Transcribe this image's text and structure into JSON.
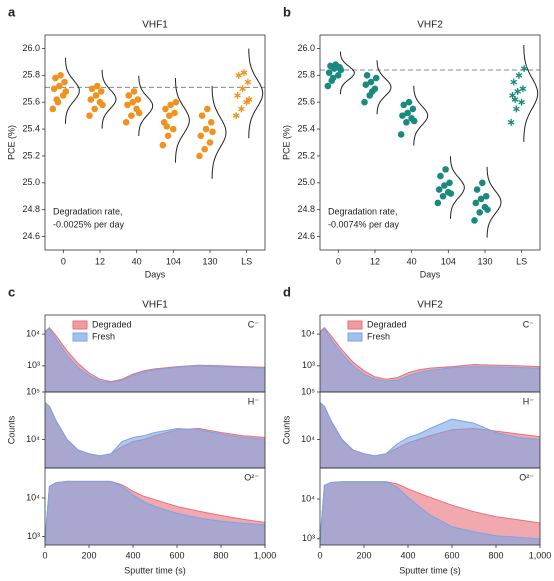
{
  "chart_data": [
    {
      "type": "strip",
      "panel": "a",
      "title": "VHF1",
      "ylabel": "PCE (%)",
      "xlabel": "Days",
      "categories": [
        "0",
        "12",
        "40",
        "104",
        "130",
        "LS"
      ],
      "points": [
        [
          25.55,
          25.6,
          25.65,
          25.7,
          25.72,
          25.75,
          25.78,
          25.8,
          25.68,
          25.62
        ],
        [
          25.5,
          25.55,
          25.6,
          25.62,
          25.65,
          25.68,
          25.7,
          25.72,
          25.58
        ],
        [
          25.45,
          25.5,
          25.55,
          25.58,
          25.6,
          25.62,
          25.65,
          25.68,
          25.52
        ],
        [
          25.28,
          25.35,
          25.4,
          25.45,
          25.5,
          25.52,
          25.55,
          25.58,
          25.6,
          25.42
        ],
        [
          25.2,
          25.25,
          25.3,
          25.35,
          25.4,
          25.45,
          25.5,
          25.55,
          25.38
        ],
        [
          25.5,
          25.55,
          25.6,
          25.65,
          25.7,
          25.75,
          25.8,
          25.82,
          25.62
        ]
      ],
      "markers": [
        "circle",
        "circle",
        "circle",
        "circle",
        "circle",
        "star"
      ],
      "color": "#f0921e",
      "reference": 25.71,
      "ylim": [
        24.5,
        26.1
      ],
      "yticks": [
        24.6,
        24.8,
        {
          "value": 25,
          "label": "25.0"
        },
        25.2,
        25.4,
        25.6,
        25.8,
        {
          "value": 26,
          "label": "26.0"
        }
      ],
      "annotation": [
        "Degradation rate,",
        "-0.0025% per day"
      ]
    },
    {
      "type": "strip",
      "panel": "b",
      "title": "VHF2",
      "ylabel": "PCE (%)",
      "xlabel": "Days",
      "categories": [
        "0",
        "12",
        "40",
        "104",
        "130",
        "LS"
      ],
      "points": [
        [
          25.72,
          25.78,
          25.8,
          25.82,
          25.85,
          25.86,
          25.87,
          25.88,
          25.84,
          25.76
        ],
        [
          25.6,
          25.65,
          25.7,
          25.73,
          25.75,
          25.78,
          25.8,
          25.68
        ],
        [
          25.36,
          25.45,
          25.48,
          25.5,
          25.52,
          25.55,
          25.58,
          25.6,
          25.46
        ],
        [
          24.85,
          24.9,
          24.93,
          24.95,
          24.98,
          25.0,
          25.05,
          25.1,
          24.92
        ],
        [
          24.72,
          24.78,
          24.82,
          24.85,
          24.88,
          24.9,
          24.95,
          25.0,
          24.8
        ],
        [
          25.45,
          25.55,
          25.6,
          25.65,
          25.68,
          25.7,
          25.75,
          25.8,
          25.85,
          25.62
        ]
      ],
      "markers": [
        "circle",
        "circle",
        "circle",
        "circle",
        "circle",
        "star"
      ],
      "color": "#1a8a7e",
      "reference": 25.84,
      "ylim": [
        24.5,
        26.1
      ],
      "yticks": [
        24.6,
        24.8,
        {
          "value": 25,
          "label": "25.0"
        },
        25.2,
        25.4,
        25.6,
        25.8,
        {
          "value": 26,
          "label": "26.0"
        }
      ],
      "annotation": [
        "Degradation rate,",
        "-0.0074% per day"
      ]
    },
    {
      "type": "area",
      "panel": "c",
      "title": "VHF1",
      "label": "C⁻",
      "legend": true,
      "log": true,
      "x": [
        0,
        20,
        50,
        100,
        150,
        200,
        250,
        300,
        350,
        400,
        450,
        500,
        600,
        700,
        800,
        900,
        1000
      ],
      "xlim": [
        0,
        1000
      ],
      "series": [
        {
          "name": "Degraded",
          "color": "#e8707a",
          "values": [
            12000,
            16000,
            9000,
            3000,
            1200,
            600,
            380,
            320,
            380,
            550,
            700,
            800,
            950,
            1050,
            1000,
            950,
            900
          ]
        },
        {
          "name": "Fresh",
          "color": "#7aa5e6",
          "values": [
            11000,
            15000,
            7000,
            2200,
            900,
            500,
            330,
            300,
            350,
            500,
            650,
            750,
            900,
            1000,
            950,
            900,
            850
          ]
        }
      ],
      "ylim": [
        150,
        40000
      ],
      "yticks": [
        {
          "value": 1000,
          "label": "10³"
        },
        {
          "value": 10000,
          "label": "10⁴"
        }
      ]
    },
    {
      "type": "area",
      "ylabel": "Counts",
      "label": "H⁻",
      "log": true,
      "x": [
        0,
        20,
        50,
        100,
        150,
        200,
        250,
        300,
        350,
        400,
        450,
        500,
        600,
        700,
        800,
        900,
        1000
      ],
      "xlim": [
        0,
        1000
      ],
      "series": [
        {
          "name": "Degraded",
          "color": "#e8707a",
          "values": [
            60000,
            50000,
            25000,
            10000,
            6000,
            5000,
            4500,
            5000,
            7000,
            9000,
            10000,
            12000,
            16000,
            17000,
            14000,
            12000,
            11000
          ]
        },
        {
          "name": "Fresh",
          "color": "#7aa5e6",
          "values": [
            60000,
            50000,
            25000,
            10000,
            6000,
            5000,
            4500,
            5000,
            9000,
            11000,
            12000,
            14000,
            17000,
            16000,
            13000,
            11000,
            10000
          ]
        }
      ],
      "ylim": [
        2500,
        100000
      ],
      "yticks": [
        {
          "value": 10000,
          "label": "10⁴"
        },
        {
          "value": 100000,
          "label": "10⁵"
        }
      ]
    },
    {
      "type": "area",
      "xlabel": "Sputter time (s)",
      "label": "O²⁻",
      "log": true,
      "x": [
        0,
        20,
        50,
        100,
        150,
        200,
        250,
        300,
        350,
        400,
        450,
        500,
        600,
        700,
        800,
        900,
        1000
      ],
      "xlim": [
        0,
        1000
      ],
      "xticks": [
        0,
        200,
        400,
        600,
        800,
        {
          "value": 1000,
          "label": "1,000"
        }
      ],
      "series": [
        {
          "name": "Degraded",
          "color": "#e8707a",
          "values": [
            800,
            20000,
            25000,
            27000,
            27000,
            27000,
            27000,
            27000,
            22000,
            15000,
            11000,
            9000,
            6000,
            4500,
            3500,
            2800,
            2300
          ]
        },
        {
          "name": "Fresh",
          "color": "#7aa5e6",
          "values": [
            800,
            20000,
            25000,
            27000,
            27000,
            27000,
            27000,
            27000,
            20000,
            12000,
            8000,
            6000,
            4000,
            3000,
            2500,
            2200,
            2000
          ]
        }
      ],
      "ylim": [
        600,
        60000
      ],
      "yticks": [
        {
          "value": 1000,
          "label": "10³"
        },
        {
          "value": 10000,
          "label": "10⁴"
        }
      ]
    },
    {
      "type": "area",
      "panel": "d",
      "title": "VHF2",
      "label": "C⁻",
      "legend": true,
      "log": true,
      "x": [
        0,
        20,
        50,
        100,
        150,
        200,
        250,
        300,
        350,
        400,
        450,
        500,
        600,
        700,
        800,
        900,
        1000
      ],
      "xlim": [
        0,
        1000
      ],
      "series": [
        {
          "name": "Degraded",
          "color": "#e8707a",
          "values": [
            12000,
            16000,
            9000,
            3200,
            1300,
            700,
            450,
            380,
            420,
            600,
            750,
            850,
            950,
            1100,
            1050,
            1000,
            950
          ]
        },
        {
          "name": "Fresh",
          "color": "#7aa5e6",
          "values": [
            11000,
            15000,
            7000,
            2400,
            1000,
            550,
            380,
            330,
            350,
            480,
            620,
            720,
            880,
            950,
            920,
            880,
            850
          ]
        }
      ],
      "ylim": [
        150,
        40000
      ],
      "yticks": [
        {
          "value": 1000,
          "label": "10³"
        },
        {
          "value": 10000,
          "label": "10⁴"
        }
      ]
    },
    {
      "type": "area",
      "ylabel": "Counts",
      "label": "H⁻",
      "log": true,
      "x": [
        0,
        20,
        50,
        100,
        150,
        200,
        250,
        300,
        350,
        400,
        450,
        500,
        600,
        700,
        800,
        900,
        1000
      ],
      "xlim": [
        0,
        1000
      ],
      "series": [
        {
          "name": "Degraded",
          "color": "#e8707a",
          "values": [
            60000,
            50000,
            25000,
            10000,
            6000,
            5000,
            4500,
            5000,
            6500,
            8500,
            10000,
            12000,
            16000,
            17000,
            15000,
            13000,
            11500
          ]
        },
        {
          "name": "Fresh",
          "color": "#7aa5e6",
          "values": [
            60000,
            50000,
            25000,
            10000,
            6000,
            5000,
            4500,
            5000,
            8000,
            11000,
            13000,
            17000,
            27000,
            22000,
            14000,
            11000,
            10000
          ]
        }
      ],
      "ylim": [
        2500,
        100000
      ],
      "yticks": [
        {
          "value": 10000,
          "label": "10⁴"
        },
        {
          "value": 100000,
          "label": "10⁵"
        }
      ]
    },
    {
      "type": "area",
      "xlabel": "Sputter time (s)",
      "label": "O²⁻",
      "log": true,
      "x": [
        0,
        20,
        50,
        100,
        150,
        200,
        250,
        300,
        350,
        400,
        450,
        500,
        600,
        700,
        800,
        900,
        1000
      ],
      "xlim": [
        0,
        1000
      ],
      "xticks": [
        0,
        200,
        400,
        600,
        800,
        {
          "value": 1000,
          "label": "1,000"
        }
      ],
      "series": [
        {
          "name": "Degraded",
          "color": "#e8707a",
          "values": [
            900,
            22000,
            26000,
            27000,
            27000,
            27000,
            27000,
            27000,
            24000,
            18000,
            14000,
            11000,
            7000,
            4800,
            3600,
            3000,
            2500
          ]
        },
        {
          "name": "Fresh",
          "color": "#7aa5e6",
          "values": [
            900,
            22000,
            26000,
            27000,
            27000,
            27000,
            27000,
            27000,
            20000,
            11000,
            6500,
            4000,
            2000,
            1500,
            1200,
            1100,
            1000
          ]
        }
      ],
      "ylim": [
        700,
        60000
      ],
      "yticks": [
        {
          "value": 1000,
          "label": "10³"
        },
        {
          "value": 10000,
          "label": "10⁴"
        }
      ]
    }
  ]
}
